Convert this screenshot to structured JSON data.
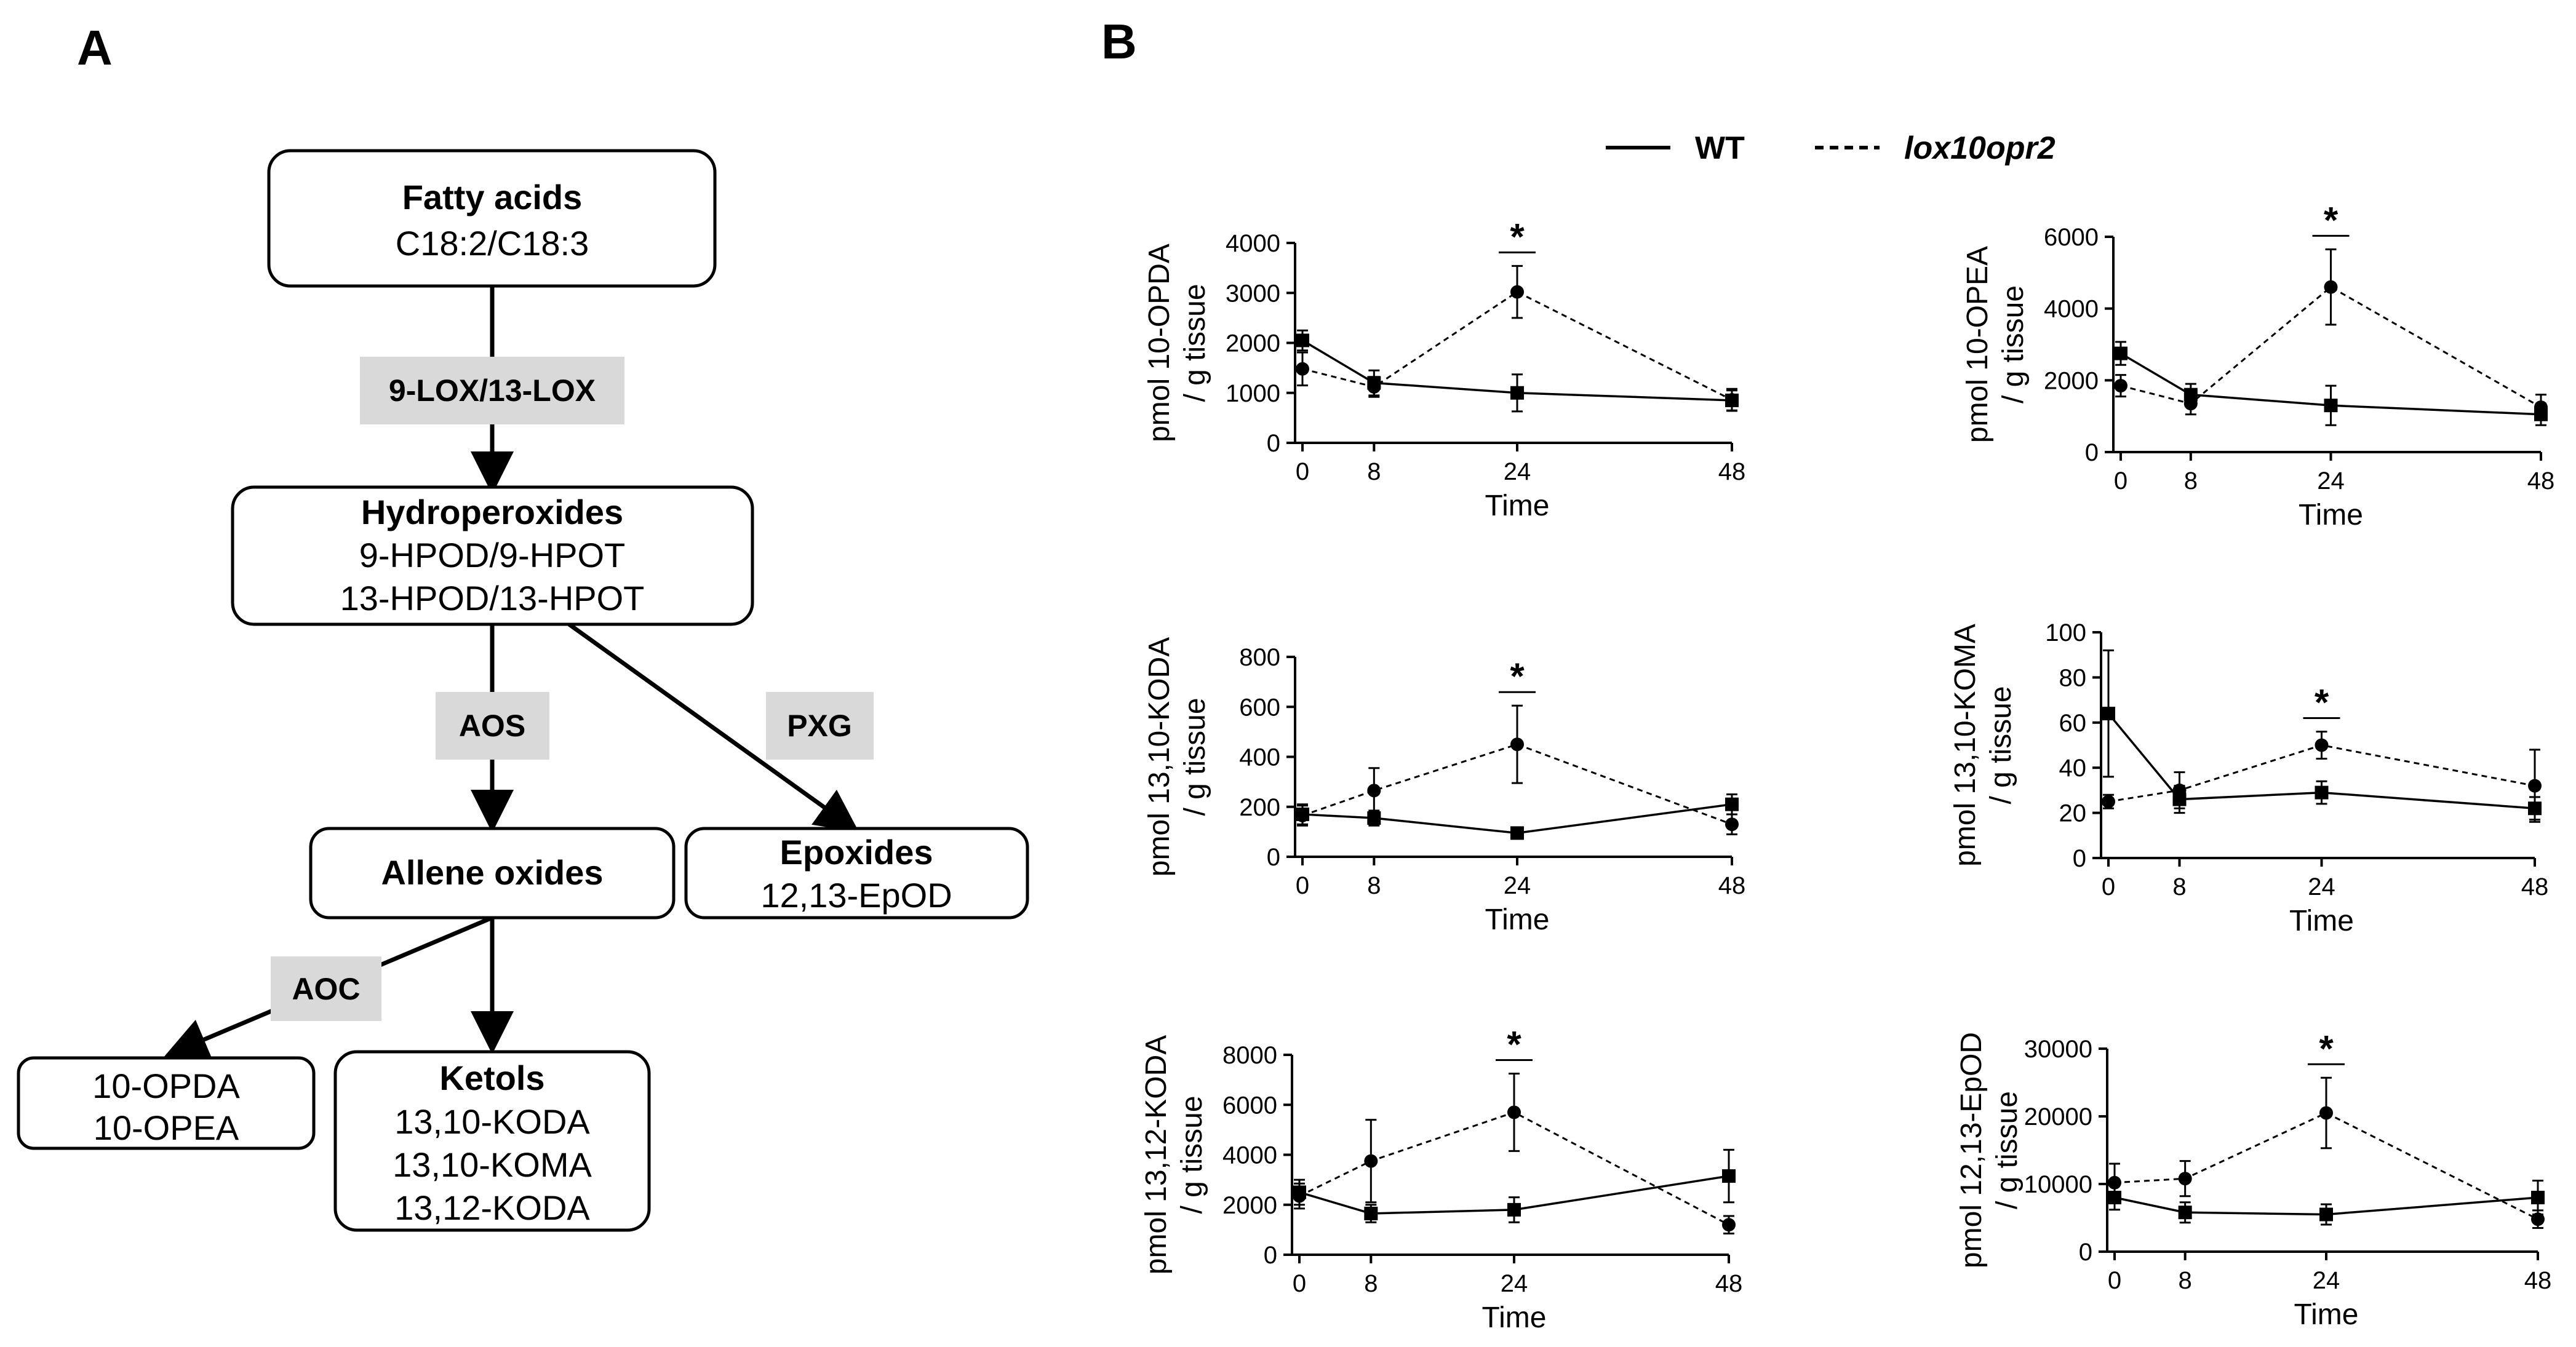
{
  "panel_a": {
    "label": "A",
    "nodes": {
      "fatty_acids": {
        "title": "Fatty acids",
        "lines": [
          "C18:2/C18:3"
        ]
      },
      "hydroperoxides": {
        "title": "Hydroperoxides",
        "lines": [
          "9-HPOD/9-HPOT",
          "13-HPOD/13-HPOT"
        ]
      },
      "allene_oxides": {
        "title": "Allene oxides",
        "lines": []
      },
      "epoxides": {
        "title": "Epoxides",
        "lines": [
          "12,13-EpOD"
        ]
      },
      "opda_opea": {
        "title": "",
        "lines": [
          "10-OPDA",
          "10-OPEA"
        ]
      },
      "ketols": {
        "title": "Ketols",
        "lines": [
          "13,10-KODA",
          "13,10-KOMA",
          "13,12-KODA"
        ]
      }
    },
    "enzymes": {
      "lox": "9-LOX/13-LOX",
      "aos": "AOS",
      "pxg": "PXG",
      "aoc": "AOC"
    }
  },
  "panel_b": {
    "label": "B",
    "legend": {
      "wt": "WT",
      "mutant": "lox10opr2"
    }
  },
  "chart_data": [
    {
      "type": "line",
      "ylabel": "pmol 10-OPDA / g tissue",
      "xlabel": "Time",
      "x": [
        0,
        8,
        24,
        48
      ],
      "xticks": [
        0,
        8,
        24,
        48
      ],
      "ylim": [
        0,
        4000
      ],
      "yticks": [
        0,
        1000,
        2000,
        3000,
        4000
      ],
      "significance": {
        "x": 24,
        "label": "*"
      },
      "series": [
        {
          "name": "WT",
          "style": "solid",
          "marker": "square",
          "values": [
            2050,
            1200,
            1000,
            850
          ],
          "errors": [
            200,
            250,
            370,
            200
          ]
        },
        {
          "name": "lox10opr2",
          "style": "dashed",
          "marker": "circle",
          "values": [
            1480,
            1120,
            3020,
            860
          ],
          "errors": [
            330,
            200,
            520,
            220
          ]
        }
      ]
    },
    {
      "type": "line",
      "ylabel": "pmol 10-OPEA / g tissue",
      "xlabel": "Time",
      "x": [
        0,
        8,
        24,
        48
      ],
      "xticks": [
        0,
        8,
        24,
        48
      ],
      "ylim": [
        0,
        6000
      ],
      "yticks": [
        0,
        2000,
        4000,
        6000
      ],
      "significance": {
        "x": 24,
        "label": "*"
      },
      "series": [
        {
          "name": "WT",
          "style": "solid",
          "marker": "square",
          "values": [
            2750,
            1600,
            1300,
            1050
          ],
          "errors": [
            320,
            300,
            550,
            300
          ]
        },
        {
          "name": "lox10opr2",
          "style": "dashed",
          "marker": "circle",
          "values": [
            1850,
            1350,
            4600,
            1250
          ],
          "errors": [
            300,
            300,
            1050,
            350
          ]
        }
      ]
    },
    {
      "type": "line",
      "ylabel": "pmol 13,10-KODA / g tissue",
      "xlabel": "Time",
      "x": [
        0,
        8,
        24,
        48
      ],
      "xticks": [
        0,
        8,
        24,
        48
      ],
      "ylim": [
        0,
        800
      ],
      "yticks": [
        0,
        200,
        400,
        600,
        800
      ],
      "significance": {
        "x": 24,
        "label": "*"
      },
      "series": [
        {
          "name": "WT",
          "style": "solid",
          "marker": "square",
          "values": [
            170,
            155,
            95,
            210
          ],
          "errors": [
            40,
            30,
            10,
            40
          ]
        },
        {
          "name": "lox10opr2",
          "style": "dashed",
          "marker": "circle",
          "values": [
            165,
            265,
            450,
            130
          ],
          "errors": [
            40,
            90,
            155,
            40
          ]
        }
      ]
    },
    {
      "type": "line",
      "ylabel": "pmol 13,10-KOMA / g tissue",
      "xlabel": "Time",
      "x": [
        0,
        8,
        24,
        48
      ],
      "xticks": [
        0,
        8,
        24,
        48
      ],
      "ylim": [
        0,
        100
      ],
      "yticks": [
        0,
        20,
        40,
        60,
        80,
        100
      ],
      "significance": {
        "x": 24,
        "label": "*"
      },
      "series": [
        {
          "name": "WT",
          "style": "solid",
          "marker": "square",
          "values": [
            64,
            26,
            29,
            22
          ],
          "errors": [
            28,
            6,
            5,
            5
          ]
        },
        {
          "name": "lox10opr2",
          "style": "dashed",
          "marker": "circle",
          "values": [
            25,
            30,
            50,
            32
          ],
          "errors": [
            3,
            8,
            6,
            16
          ]
        }
      ]
    },
    {
      "type": "line",
      "ylabel": "pmol 13,12-KODA / g tissue",
      "xlabel": "Time",
      "x": [
        0,
        8,
        24,
        48
      ],
      "xticks": [
        0,
        8,
        24,
        48
      ],
      "ylim": [
        0,
        8000
      ],
      "yticks": [
        0,
        2000,
        4000,
        6000,
        8000
      ],
      "significance": {
        "x": 24,
        "label": "*"
      },
      "series": [
        {
          "name": "WT",
          "style": "solid",
          "marker": "square",
          "values": [
            2500,
            1650,
            1800,
            3150
          ],
          "errors": [
            500,
            350,
            500,
            1050
          ]
        },
        {
          "name": "lox10opr2",
          "style": "dashed",
          "marker": "circle",
          "values": [
            2350,
            3750,
            5700,
            1200
          ],
          "errors": [
            500,
            1650,
            1550,
            350
          ]
        }
      ]
    },
    {
      "type": "line",
      "ylabel": "pmol 12,13-EpOD / g tissue",
      "xlabel": "Time",
      "x": [
        0,
        8,
        24,
        48
      ],
      "xticks": [
        0,
        8,
        24,
        48
      ],
      "ylim": [
        0,
        30000
      ],
      "yticks": [
        0,
        10000,
        20000,
        30000
      ],
      "significance": {
        "x": 24,
        "label": "*"
      },
      "series": [
        {
          "name": "WT",
          "style": "solid",
          "marker": "square",
          "values": [
            8000,
            5800,
            5500,
            8000
          ],
          "errors": [
            1800,
            1500,
            1500,
            2500
          ]
        },
        {
          "name": "lox10opr2",
          "style": "dashed",
          "marker": "circle",
          "values": [
            10200,
            10800,
            20500,
            4800
          ],
          "errors": [
            2800,
            2600,
            5200,
            1300
          ]
        }
      ]
    }
  ]
}
